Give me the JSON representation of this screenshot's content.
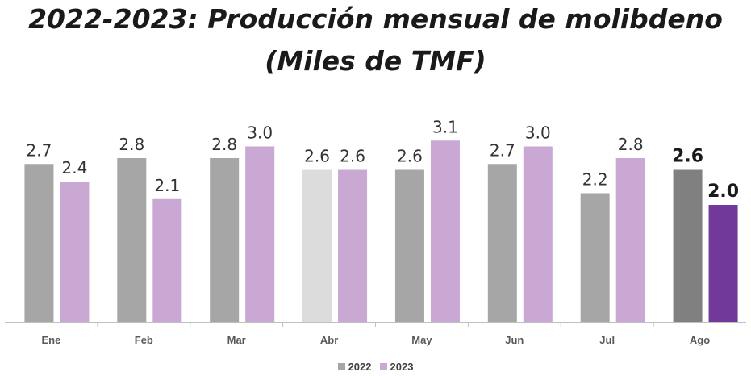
{
  "chart_data": {
    "type": "bar",
    "title": "2022-2023: Producción mensual de molibdeno",
    "subtitle": "(Miles de TMF)",
    "categories": [
      "Ene",
      "Feb",
      "Mar",
      "Abr",
      "May",
      "Jun",
      "Jul",
      "Ago"
    ],
    "series": [
      {
        "name": "2022",
        "values": [
          2.7,
          2.8,
          2.8,
          2.6,
          2.6,
          2.7,
          2.2,
          2.6
        ],
        "color": "#a6a6a6"
      },
      {
        "name": "2023",
        "values": [
          2.4,
          2.1,
          3.0,
          2.6,
          3.1,
          3.0,
          2.8,
          2.0
        ],
        "color": "#c9a8d3"
      }
    ],
    "highlight": {
      "Abr": {
        "2022": "#dcdcdc"
      },
      "Ago": {
        "2022": "#808080",
        "2023": "#71399a"
      }
    },
    "ylim": [
      0,
      3.1
    ],
    "legend_position": "bottom-center",
    "grid": false
  }
}
